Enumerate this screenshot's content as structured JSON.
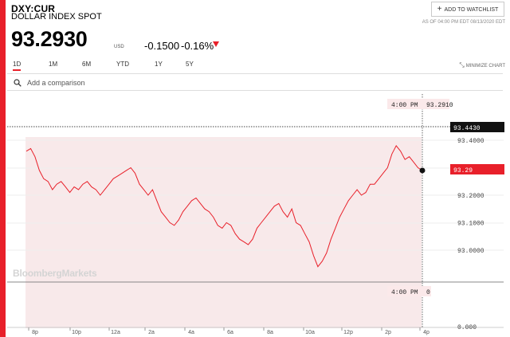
{
  "header": {
    "ticker": "DXY:CUR",
    "name": "DOLLAR INDEX SPOT",
    "watchlist_label": "ADD TO WATCHLIST",
    "as_of": "AS OF 04:00 PM EDT 08/13/2020 EDT"
  },
  "quote": {
    "price": "93.2930",
    "currency": "USD",
    "change": "-0.1500",
    "change_pct": "-0.16%"
  },
  "ranges": [
    "1D",
    "1M",
    "6M",
    "YTD",
    "1Y",
    "5Y"
  ],
  "active_range": "1D",
  "minimize_label": "MINIMIZE CHART",
  "compare": {
    "placeholder": "Add a comparison"
  },
  "watermark": "BloombergMarkets",
  "colors": {
    "accent": "#e8202a",
    "fill": "#f8e9ea",
    "dark": "#111111"
  },
  "chart_data": {
    "type": "area",
    "x_labels": [
      "8p",
      "10p",
      "12a",
      "2a",
      "4a",
      "6a",
      "8a",
      "10a",
      "12p",
      "2p",
      "4p"
    ],
    "y_ticks": [
      "93.4000",
      "93.3000",
      "93.2000",
      "93.1000",
      "93.0000"
    ],
    "volume_tick": "0.000",
    "hover_time": "4:00 PM",
    "hover_value": "93.2910",
    "hover_volume": "0",
    "high_label": "93.4430",
    "last_label": "93.29",
    "series": [
      {
        "values": [
          93.36,
          93.37,
          93.34,
          93.29,
          93.26,
          93.25,
          93.22,
          93.24,
          93.25,
          93.23,
          93.21,
          93.23,
          93.22,
          93.24,
          93.25,
          93.23,
          93.22,
          93.2,
          93.22,
          93.24,
          93.26,
          93.27,
          93.28,
          93.29,
          93.3,
          93.28,
          93.24,
          93.22,
          93.2,
          93.22,
          93.18,
          93.14,
          93.12,
          93.1,
          93.09,
          93.11,
          93.14,
          93.16,
          93.18,
          93.19,
          93.17,
          93.15,
          93.14,
          93.12,
          93.09,
          93.08,
          93.1,
          93.09,
          93.06,
          93.04,
          93.03,
          93.02,
          93.04,
          93.08,
          93.1,
          93.12,
          93.14,
          93.16,
          93.17,
          93.14,
          93.12,
          93.15,
          93.1,
          93.09,
          93.06,
          93.03,
          92.98,
          92.94,
          92.96,
          92.99,
          93.04,
          93.08,
          93.12,
          93.15,
          93.18,
          93.2,
          93.22,
          93.2,
          93.21,
          93.24,
          93.24,
          93.26,
          93.28,
          93.3,
          93.35,
          93.38,
          93.36,
          93.33,
          93.34,
          93.32,
          93.3,
          93.29
        ]
      }
    ]
  }
}
